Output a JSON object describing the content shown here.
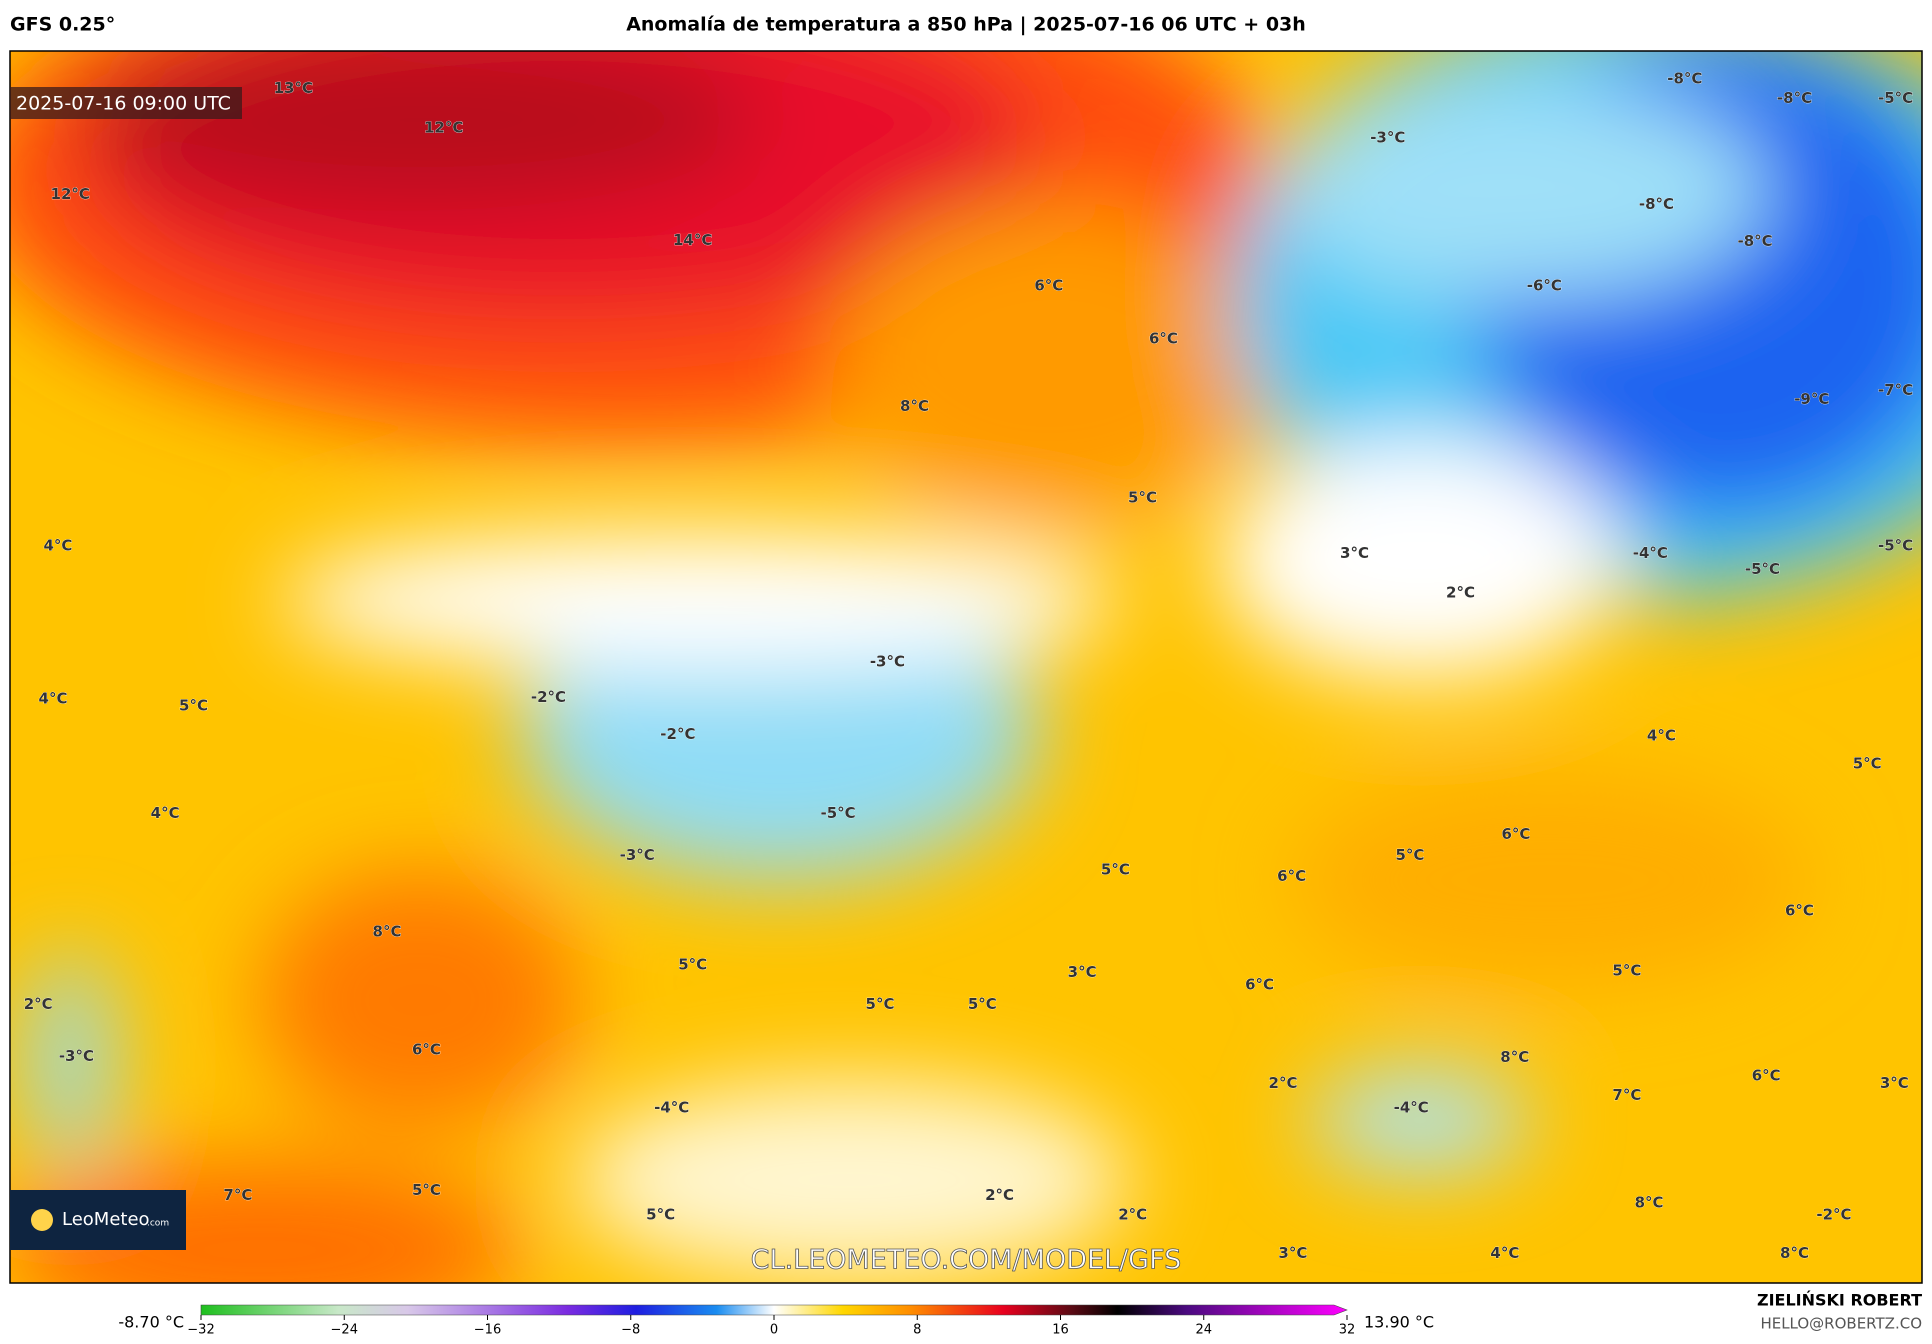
{
  "header": {
    "model": "GFS 0.25°",
    "title": "Anomalía de temperatura a 850 hPa | 2025-07-16 06 UTC + 03h"
  },
  "map": {
    "timestamp": "2025-07-16 09:00 UTC",
    "logo": "LeoMeteo",
    "logo_suffix": ".com",
    "watermark": "CL.LEOMETEO.COM/MODEL/GFS",
    "labels": [
      "13°C",
      "12°C",
      "12°C",
      "14°C",
      "6°C",
      "6°C",
      "8°C",
      "5°C",
      "4°C",
      "3°C",
      "2°C",
      "-3°C",
      "-2°C",
      "4°C",
      "5°C",
      "-2°C",
      "4°C",
      "-5°C",
      "-3°C",
      "5°C",
      "6°C",
      "5°C",
      "6°C",
      "8°C",
      "5°C",
      "3°C",
      "6°C",
      "5°C",
      "5°C",
      "2°C",
      "-3°C",
      "6°C",
      "8°C",
      "2°C",
      "7°C",
      "6°C",
      "3°C",
      "-4°C",
      "-4°C",
      "7°C",
      "5°C",
      "2°C",
      "5°C",
      "2°C",
      "8°C",
      "-2°C",
      "3°C",
      "4°C",
      "8°C",
      "-8°C",
      "-8°C",
      "-5°C",
      "-3°C",
      "-8°C",
      "-8°C",
      "-6°C",
      "-9°C",
      "-7°C",
      "-4°C",
      "-5°C",
      "-5°C",
      "4°C",
      "5°C",
      "6°C",
      "5°C"
    ]
  },
  "colorbar": {
    "min_label": "-8.70 °C",
    "max_label": "13.90 °C",
    "range": [
      -32,
      32
    ],
    "ticks": [
      {
        "value": -32,
        "label": "−32"
      },
      {
        "value": -24,
        "label": "−24"
      },
      {
        "value": -16,
        "label": "−16"
      },
      {
        "value": -8,
        "label": "−8"
      },
      0,
      8,
      16,
      24,
      32
    ]
  },
  "footer": {
    "author": "ZIELIŃSKI ROBERT",
    "email": "HELLO@ROBERTZ.CO"
  }
}
